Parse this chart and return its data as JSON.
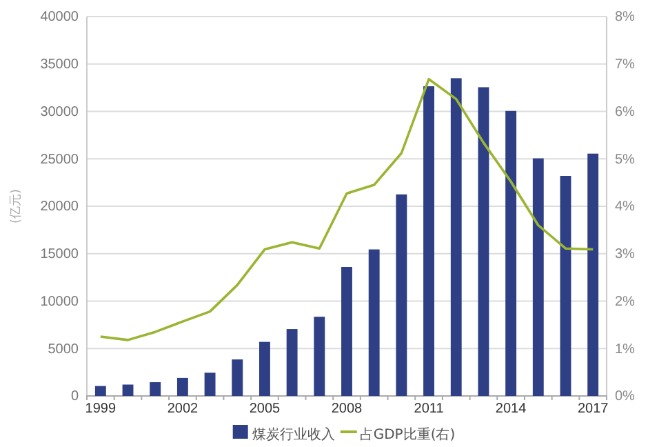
{
  "chart_data": {
    "type": "bar",
    "ylabel": "(亿元)",
    "categories": [
      "1999",
      null,
      null,
      "2002",
      null,
      null,
      "2005",
      null,
      null,
      "2008",
      null,
      null,
      "2011",
      null,
      null,
      "2014",
      null,
      null,
      "2017"
    ],
    "series": [
      {
        "name": "煤炭行业收入",
        "color": "#2e3f85",
        "values": [
          1050,
          1200,
          1450,
          1900,
          2450,
          3850,
          5700,
          7050,
          8350,
          13600,
          15450,
          21250,
          32650,
          33500,
          32550,
          30050,
          25050,
          23200,
          25550
        ]
      },
      {
        "name": "占GDP比重(右)",
        "type": "line",
        "axis": "y2",
        "color": "#9bb532",
        "values": [
          1.25,
          1.18,
          1.35,
          1.57,
          1.78,
          2.34,
          3.09,
          3.24,
          3.11,
          4.27,
          4.45,
          5.12,
          6.68,
          6.26,
          5.34,
          4.52,
          3.6,
          3.11,
          3.09
        ]
      }
    ],
    "ylim": [
      0,
      40000
    ],
    "yticks": [
      0,
      5000,
      10000,
      15000,
      20000,
      25000,
      30000,
      35000,
      40000
    ],
    "y2lim": [
      0,
      8
    ],
    "y2ticks": [
      {
        "value": 0,
        "label": "0%"
      },
      {
        "value": 1,
        "label": "1%"
      },
      {
        "value": 2,
        "label": "2%"
      },
      {
        "value": 3,
        "label": "3%"
      },
      {
        "value": 4,
        "label": "4%"
      },
      {
        "value": 5,
        "label": "5%"
      },
      {
        "value": 6,
        "label": "6%"
      },
      {
        "value": 7,
        "label": "7%"
      },
      {
        "value": 8,
        "label": "8%"
      }
    ],
    "grid": "y",
    "legend": "bottom",
    "marker": "none",
    "line_style": "solid"
  }
}
